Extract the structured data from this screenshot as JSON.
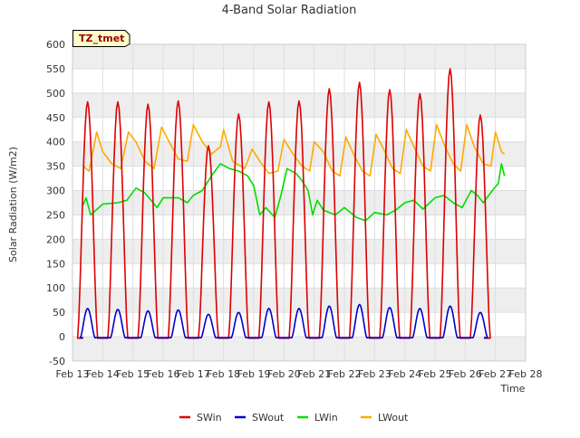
{
  "chart_data": {
    "type": "line",
    "title": "4-Band Solar Radiation",
    "xlabel": "Time",
    "ylabel": "Solar Radiation (W/m2)",
    "annotation": "TZ_tmet",
    "ylim": [
      -50,
      600
    ],
    "xlim": [
      13,
      28
    ],
    "y_ticks": [
      -50,
      0,
      50,
      100,
      150,
      200,
      250,
      300,
      350,
      400,
      450,
      500,
      550,
      600
    ],
    "x_ticks": [
      13,
      14,
      15,
      16,
      17,
      18,
      19,
      20,
      21,
      22,
      23,
      24,
      25,
      26,
      27,
      28
    ],
    "x_tick_labels": [
      "Feb 13",
      "Feb 14",
      "Feb 15",
      "Feb 16",
      "Feb 17",
      "Feb 18",
      "Feb 19",
      "Feb 20",
      "Feb 21",
      "Feb 22",
      "Feb 23",
      "Feb 24",
      "Feb 25",
      "Feb 26",
      "Feb 27",
      "Feb 28"
    ],
    "grid": true,
    "legend_position": "bottom",
    "colors": {
      "SWin": "#dd0000",
      "SWout": "#0000cc",
      "LWin": "#00dd00",
      "LWout": "#ffaa00",
      "band": "#eeeeee",
      "annotation_bg": "#ffffcc",
      "annotation_text": "#990000"
    },
    "days": [
      13.5,
      14.5,
      15.5,
      16.5,
      17.5,
      18.5,
      19.5,
      20.5,
      21.5,
      22.5,
      23.5,
      24.5,
      25.5,
      26.5
    ],
    "series": [
      {
        "name": "SWin",
        "daily_peak": [
          485,
          485,
          480,
          487,
          395,
          460,
          485,
          487,
          512,
          525,
          510,
          502,
          553,
          458
        ]
      },
      {
        "name": "SWout",
        "daily_peak": [
          60,
          58,
          55,
          57,
          48,
          52,
          60,
          60,
          65,
          68,
          62,
          60,
          65,
          52
        ]
      },
      {
        "name": "LWin",
        "points": [
          [
            13.35,
            270
          ],
          [
            13.45,
            285
          ],
          [
            13.6,
            250
          ],
          [
            14.0,
            272
          ],
          [
            14.5,
            275
          ],
          [
            14.8,
            280
          ],
          [
            15.1,
            305
          ],
          [
            15.4,
            295
          ],
          [
            15.8,
            265
          ],
          [
            16.0,
            285
          ],
          [
            16.5,
            285
          ],
          [
            16.8,
            275
          ],
          [
            17.0,
            290
          ],
          [
            17.3,
            300
          ],
          [
            17.6,
            330
          ],
          [
            17.9,
            355
          ],
          [
            18.2,
            345
          ],
          [
            18.5,
            340
          ],
          [
            18.8,
            330
          ],
          [
            19.0,
            310
          ],
          [
            19.2,
            250
          ],
          [
            19.4,
            265
          ],
          [
            19.7,
            245
          ],
          [
            19.9,
            290
          ],
          [
            20.1,
            345
          ],
          [
            20.4,
            335
          ],
          [
            20.6,
            320
          ],
          [
            20.8,
            300
          ],
          [
            20.95,
            250
          ],
          [
            21.1,
            280
          ],
          [
            21.3,
            260
          ],
          [
            21.7,
            250
          ],
          [
            22.0,
            265
          ],
          [
            22.4,
            245
          ],
          [
            22.7,
            238
          ],
          [
            23.0,
            255
          ],
          [
            23.4,
            250
          ],
          [
            23.7,
            260
          ],
          [
            24.0,
            275
          ],
          [
            24.3,
            280
          ],
          [
            24.6,
            262
          ],
          [
            25.0,
            285
          ],
          [
            25.3,
            290
          ],
          [
            25.6,
            275
          ],
          [
            25.9,
            265
          ],
          [
            26.2,
            300
          ],
          [
            26.4,
            290
          ],
          [
            26.6,
            275
          ],
          [
            26.9,
            300
          ],
          [
            27.1,
            315
          ],
          [
            27.2,
            355
          ],
          [
            27.3,
            330
          ]
        ]
      },
      {
        "name": "LWout",
        "points": [
          [
            13.35,
            350
          ],
          [
            13.55,
            340
          ],
          [
            13.8,
            420
          ],
          [
            14.0,
            380
          ],
          [
            14.3,
            355
          ],
          [
            14.6,
            345
          ],
          [
            14.85,
            420
          ],
          [
            15.1,
            400
          ],
          [
            15.4,
            360
          ],
          [
            15.7,
            345
          ],
          [
            15.95,
            430
          ],
          [
            16.2,
            400
          ],
          [
            16.5,
            365
          ],
          [
            16.8,
            360
          ],
          [
            17.0,
            435
          ],
          [
            17.3,
            400
          ],
          [
            17.6,
            375
          ],
          [
            17.9,
            390
          ],
          [
            18.0,
            425
          ],
          [
            18.3,
            360
          ],
          [
            18.7,
            345
          ],
          [
            18.95,
            385
          ],
          [
            19.2,
            360
          ],
          [
            19.5,
            335
          ],
          [
            19.8,
            340
          ],
          [
            20.0,
            405
          ],
          [
            20.3,
            375
          ],
          [
            20.6,
            350
          ],
          [
            20.85,
            340
          ],
          [
            21.0,
            400
          ],
          [
            21.3,
            380
          ],
          [
            21.6,
            340
          ],
          [
            21.85,
            330
          ],
          [
            22.05,
            410
          ],
          [
            22.3,
            375
          ],
          [
            22.6,
            340
          ],
          [
            22.85,
            330
          ],
          [
            23.05,
            415
          ],
          [
            23.3,
            385
          ],
          [
            23.6,
            345
          ],
          [
            23.85,
            335
          ],
          [
            24.05,
            425
          ],
          [
            24.3,
            390
          ],
          [
            24.6,
            350
          ],
          [
            24.85,
            340
          ],
          [
            25.05,
            435
          ],
          [
            25.3,
            395
          ],
          [
            25.6,
            355
          ],
          [
            25.85,
            340
          ],
          [
            26.05,
            435
          ],
          [
            26.3,
            390
          ],
          [
            26.6,
            355
          ],
          [
            26.85,
            350
          ],
          [
            27.0,
            420
          ],
          [
            27.2,
            380
          ],
          [
            27.3,
            375
          ]
        ]
      }
    ]
  }
}
